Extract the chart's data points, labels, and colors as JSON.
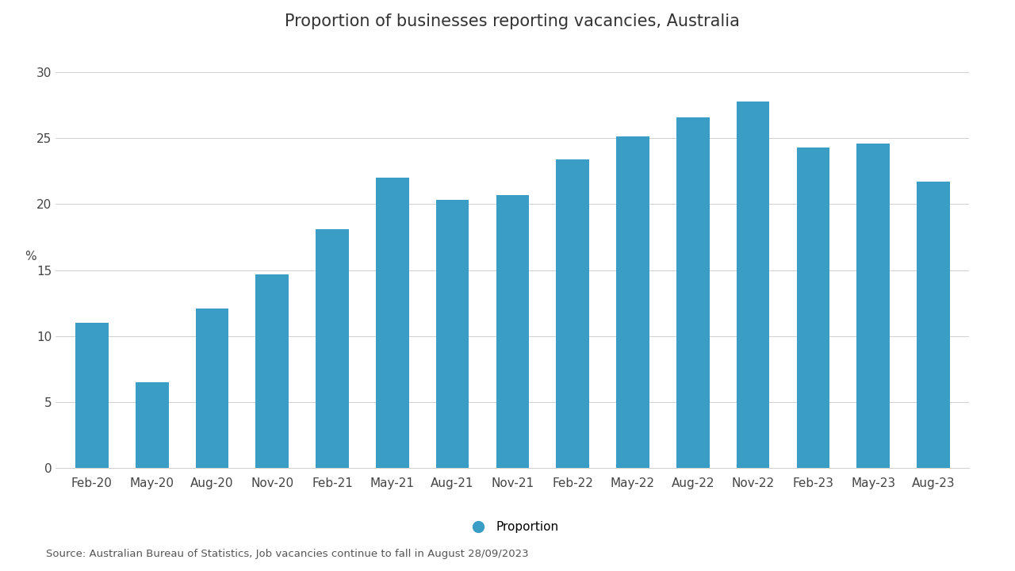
{
  "title": "Proportion of businesses reporting vacancies, Australia",
  "categories": [
    "Feb-20",
    "May-20",
    "Aug-20",
    "Nov-20",
    "Feb-21",
    "May-21",
    "Aug-21",
    "Nov-21",
    "Feb-22",
    "May-22",
    "Aug-22",
    "Nov-22",
    "Feb-23",
    "May-23",
    "Aug-23"
  ],
  "values": [
    11.0,
    6.5,
    12.1,
    14.7,
    18.1,
    22.0,
    20.3,
    20.7,
    23.4,
    25.1,
    26.6,
    27.8,
    24.3,
    24.6,
    21.7
  ],
  "bar_color": "#3A9DC5",
  "ylabel": "%",
  "ylim": [
    0,
    32
  ],
  "yticks": [
    0,
    5,
    10,
    15,
    20,
    25,
    30
  ],
  "legend_label": "Proportion",
  "source_text": "Source: Australian Bureau of Statistics, Job vacancies continue to fall in August 28/09/2023",
  "background_color": "#FFFFFF",
  "grid_color": "#D0D0D0",
  "title_fontsize": 15,
  "tick_fontsize": 11,
  "ylabel_fontsize": 11,
  "source_fontsize": 9.5
}
